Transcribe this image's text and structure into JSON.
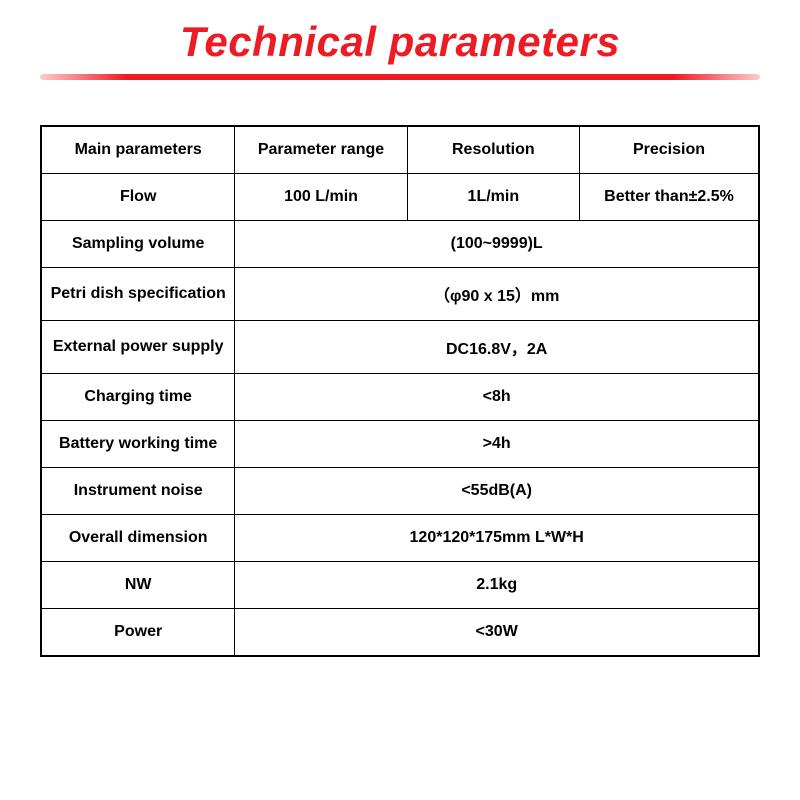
{
  "title": "Technical parameters",
  "colors": {
    "title_color": "#ed1c24",
    "underline_gradient_start": "#ffcccc",
    "underline_gradient_mid": "#ed1c24",
    "border_color": "#000000",
    "text_color": "#000000",
    "background_color": "#ffffff"
  },
  "typography": {
    "title_fontsize": 42,
    "title_weight": "bold",
    "title_style": "italic",
    "cell_fontsize": 16,
    "cell_weight": "bold"
  },
  "table": {
    "column_widths": [
      "27%",
      "24%",
      "24%",
      "25%"
    ],
    "headers": {
      "c0": "Main parameters",
      "c1": "Parameter range",
      "c2": "Resolution",
      "c3": "Precision"
    },
    "row_flow": {
      "label": "Flow",
      "range": "100 L/min",
      "resolution": "1L/min",
      "precision": "Better than±2.5%"
    },
    "rows_spanned": [
      {
        "label": "Sampling volume",
        "value": "(100~9999)L"
      },
      {
        "label": "Petri dish specification",
        "value": "（φ90 x 15）mm"
      },
      {
        "label": "External power supply",
        "value": "DC16.8V，2A"
      },
      {
        "label": "Charging time",
        "value": "<8h"
      },
      {
        "label": "Battery working time",
        "value": ">4h"
      },
      {
        "label": "Instrument noise",
        "value": "<55dB(A)"
      },
      {
        "label": "Overall dimension",
        "value": "120*120*175mm L*W*H"
      },
      {
        "label": "NW",
        "value": "2.1kg"
      },
      {
        "label": "Power",
        "value": "<30W"
      }
    ]
  }
}
